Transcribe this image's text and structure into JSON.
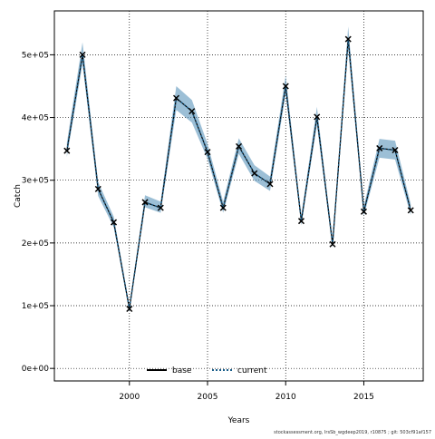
{
  "chart_data": {
    "type": "line",
    "title": "",
    "xlabel": "Years",
    "ylabel": "Catch",
    "xlim": [
      1995.2,
      2018.8
    ],
    "ylim": [
      -20000,
      570000
    ],
    "xticks": [
      2000,
      2005,
      2010,
      2015
    ],
    "xtick_labels": [
      "2000",
      "2005",
      "2010",
      "2015"
    ],
    "yticks": [
      0,
      100000,
      200000,
      300000,
      400000,
      500000
    ],
    "ytick_labels": [
      "0e+00",
      "1e+05",
      "2e+05",
      "3e+05",
      "4e+05",
      "5e+05"
    ],
    "grid": true,
    "legend_placement": "bottom-center",
    "x": [
      1996,
      1997,
      1998,
      1999,
      2000,
      2001,
      2002,
      2003,
      2004,
      2005,
      2006,
      2007,
      2008,
      2009,
      2010,
      2011,
      2012,
      2013,
      2014,
      2015,
      2016,
      2017,
      2018
    ],
    "observed": [
      347000,
      500000,
      286000,
      233000,
      95000,
      265000,
      256000,
      431000,
      410000,
      345000,
      256000,
      354000,
      311000,
      294000,
      450000,
      235000,
      401000,
      198000,
      525000,
      250000,
      351000,
      348000,
      252000
    ],
    "series": [
      {
        "name": "base",
        "color": "#000000",
        "style": "solid",
        "values": [
          347000,
          500000,
          286000,
          233000,
          95000,
          265000,
          256000,
          431000,
          410000,
          345000,
          256000,
          354000,
          311000,
          294000,
          450000,
          235000,
          401000,
          198000,
          525000,
          250000,
          351000,
          348000,
          252000
        ]
      },
      {
        "name": "current",
        "color": "#1a5e8a",
        "style": "dotted",
        "values": [
          347000,
          500000,
          286000,
          233000,
          95000,
          265000,
          256000,
          431000,
          410000,
          345000,
          256000,
          354000,
          311000,
          294000,
          450000,
          235000,
          401000,
          198000,
          525000,
          250000,
          351000,
          348000,
          252000
        ],
        "band_color": "#4a8ab5",
        "lower": [
          337000,
          485000,
          275000,
          225000,
          90000,
          257000,
          248000,
          412000,
          392000,
          334000,
          248000,
          342000,
          299000,
          283000,
          437000,
          228000,
          388000,
          192000,
          510000,
          243000,
          336000,
          333000,
          244000
        ],
        "upper": [
          360000,
          520000,
          297000,
          242000,
          101000,
          276000,
          266000,
          450000,
          428000,
          358000,
          266000,
          367000,
          324000,
          306000,
          467000,
          244000,
          417000,
          206000,
          545000,
          259000,
          366000,
          363000,
          262000
        ]
      }
    ]
  },
  "footer": "stockassessment.org, IrsSb_wgdeep2019, r10875 ; git: 503cf91af157"
}
